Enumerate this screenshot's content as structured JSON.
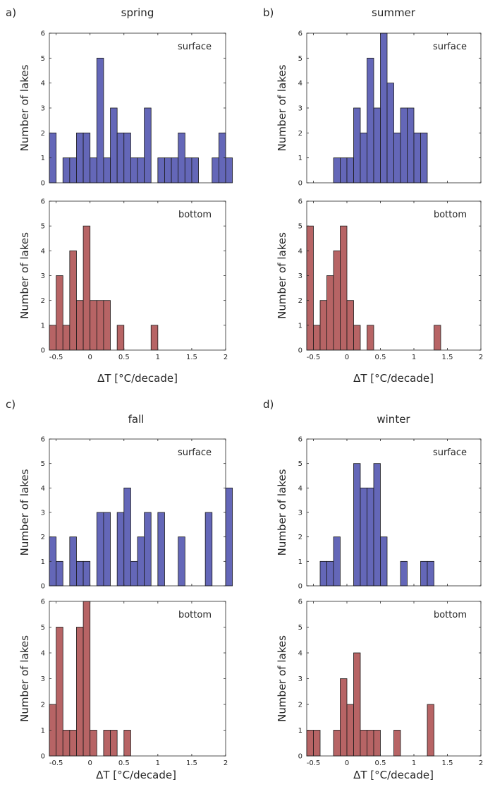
{
  "figure": {
    "x_axis_label": "ΔT [°C/decade]",
    "y_axis_label": "Number of lakes",
    "colors": {
      "surface": "#6467b8",
      "bottom": "#b76465",
      "edge": "#1a1a1a",
      "axis": "#262626"
    }
  },
  "chart_data": [
    {
      "panel": "a)",
      "season": "spring",
      "type": "bar",
      "plots": [
        {
          "label": "surface",
          "kind": "surface",
          "xlim": [
            -0.6,
            2
          ],
          "ylim": [
            0,
            6
          ],
          "xticks": [
            "-0.5",
            "0",
            "0.5",
            "1",
            "1.5",
            "2"
          ],
          "yticks": [
            "0",
            "1",
            "2",
            "3",
            "4",
            "5",
            "6"
          ],
          "bins": [
            [
              -0.6,
              2
            ],
            [
              -0.5,
              0
            ],
            [
              -0.4,
              1
            ],
            [
              -0.3,
              1
            ],
            [
              -0.2,
              2
            ],
            [
              -0.1,
              2
            ],
            [
              0.0,
              1
            ],
            [
              0.1,
              5
            ],
            [
              0.2,
              1
            ],
            [
              0.3,
              3
            ],
            [
              0.4,
              2
            ],
            [
              0.5,
              2
            ],
            [
              0.6,
              1
            ],
            [
              0.7,
              1
            ],
            [
              0.8,
              3
            ],
            [
              0.9,
              0
            ],
            [
              1.0,
              1
            ],
            [
              1.1,
              1
            ],
            [
              1.2,
              1
            ],
            [
              1.3,
              2
            ],
            [
              1.4,
              1
            ],
            [
              1.5,
              1
            ],
            [
              1.6,
              0
            ],
            [
              1.7,
              0
            ],
            [
              1.8,
              1
            ],
            [
              1.9,
              2
            ],
            [
              2.0,
              1
            ]
          ],
          "binwidth": 0.1
        },
        {
          "label": "bottom",
          "kind": "bottom",
          "xlim": [
            -0.6,
            2
          ],
          "ylim": [
            0,
            6
          ],
          "xticks": [
            "-0.5",
            "0",
            "0.5",
            "1",
            "1.5",
            "2"
          ],
          "yticks": [
            "0",
            "1",
            "2",
            "3",
            "4",
            "5",
            "6"
          ],
          "bins": [
            [
              -0.6,
              1
            ],
            [
              -0.5,
              3
            ],
            [
              -0.4,
              1
            ],
            [
              -0.3,
              4
            ],
            [
              -0.2,
              2
            ],
            [
              -0.1,
              5
            ],
            [
              0.0,
              2
            ],
            [
              0.1,
              2
            ],
            [
              0.2,
              2
            ],
            [
              0.3,
              0
            ],
            [
              0.4,
              1
            ],
            [
              0.9,
              1
            ]
          ],
          "binwidth": 0.1
        }
      ]
    },
    {
      "panel": "b)",
      "season": "summer",
      "type": "bar",
      "plots": [
        {
          "label": "surface",
          "kind": "surface",
          "xlim": [
            -0.6,
            2
          ],
          "ylim": [
            0,
            6
          ],
          "xticks": [
            "-0.5",
            "0",
            "0.5",
            "1",
            "1.5",
            "2"
          ],
          "yticks": [
            "0",
            "1",
            "2",
            "3",
            "4",
            "5",
            "6"
          ],
          "bins": [
            [
              -0.2,
              1
            ],
            [
              -0.1,
              1
            ],
            [
              0.0,
              1
            ],
            [
              0.1,
              3
            ],
            [
              0.2,
              2
            ],
            [
              0.3,
              5
            ],
            [
              0.4,
              3
            ],
            [
              0.5,
              6
            ],
            [
              0.6,
              4
            ],
            [
              0.7,
              2
            ],
            [
              0.8,
              3
            ],
            [
              0.9,
              3
            ],
            [
              1.0,
              2
            ],
            [
              1.1,
              2
            ]
          ],
          "binwidth": 0.1
        },
        {
          "label": "bottom",
          "kind": "bottom",
          "xlim": [
            -0.6,
            2
          ],
          "ylim": [
            0,
            6
          ],
          "xticks": [
            "-0.5",
            "0",
            "0.5",
            "1",
            "1.5",
            "2"
          ],
          "yticks": [
            "0",
            "1",
            "2",
            "3",
            "4",
            "5",
            "6"
          ],
          "bins": [
            [
              -0.6,
              5
            ],
            [
              -0.5,
              1
            ],
            [
              -0.4,
              2
            ],
            [
              -0.3,
              3
            ],
            [
              -0.2,
              4
            ],
            [
              -0.1,
              5
            ],
            [
              0.0,
              2
            ],
            [
              0.1,
              1
            ],
            [
              0.3,
              1
            ],
            [
              1.3,
              1
            ]
          ],
          "binwidth": 0.1
        }
      ]
    },
    {
      "panel": "c)",
      "season": "fall",
      "type": "bar",
      "plots": [
        {
          "label": "surface",
          "kind": "surface",
          "xlim": [
            -0.6,
            2
          ],
          "ylim": [
            0,
            6
          ],
          "xticks": [
            "-0.5",
            "0",
            "0.5",
            "1",
            "1.5",
            "2"
          ],
          "yticks": [
            "0",
            "1",
            "2",
            "3",
            "4",
            "5",
            "6"
          ],
          "bins": [
            [
              -0.6,
              2
            ],
            [
              -0.5,
              1
            ],
            [
              -0.3,
              2
            ],
            [
              -0.2,
              1
            ],
            [
              -0.1,
              1
            ],
            [
              0.1,
              3
            ],
            [
              0.2,
              3
            ],
            [
              0.4,
              3
            ],
            [
              0.5,
              4
            ],
            [
              0.6,
              1
            ],
            [
              0.7,
              2
            ],
            [
              0.8,
              3
            ],
            [
              1.0,
              3
            ],
            [
              1.3,
              2
            ],
            [
              1.7,
              3
            ],
            [
              2.0,
              4
            ]
          ],
          "binwidth": 0.1
        },
        {
          "label": "bottom",
          "kind": "bottom",
          "xlim": [
            -0.6,
            2
          ],
          "ylim": [
            0,
            6
          ],
          "xticks": [
            "-0.5",
            "0",
            "0.5",
            "1",
            "1.5",
            "2"
          ],
          "yticks": [
            "0",
            "1",
            "2",
            "3",
            "4",
            "5",
            "6"
          ],
          "bins": [
            [
              -0.6,
              2
            ],
            [
              -0.5,
              5
            ],
            [
              -0.4,
              1
            ],
            [
              -0.3,
              1
            ],
            [
              -0.2,
              5
            ],
            [
              -0.1,
              6
            ],
            [
              0.0,
              1
            ],
            [
              0.2,
              1
            ],
            [
              0.3,
              1
            ],
            [
              0.5,
              1
            ]
          ],
          "binwidth": 0.1
        }
      ]
    },
    {
      "panel": "d)",
      "season": "winter",
      "type": "bar",
      "plots": [
        {
          "label": "surface",
          "kind": "surface",
          "xlim": [
            -0.6,
            2
          ],
          "ylim": [
            0,
            6
          ],
          "xticks": [
            "-0.5",
            "0",
            "0.5",
            "1",
            "1.5",
            "2"
          ],
          "yticks": [
            "0",
            "1",
            "2",
            "3",
            "4",
            "5",
            "6"
          ],
          "bins": [
            [
              -0.4,
              1
            ],
            [
              -0.3,
              1
            ],
            [
              -0.2,
              2
            ],
            [
              0.1,
              5
            ],
            [
              0.2,
              4
            ],
            [
              0.3,
              4
            ],
            [
              0.4,
              5
            ],
            [
              0.5,
              2
            ],
            [
              0.8,
              1
            ],
            [
              1.1,
              1
            ],
            [
              1.2,
              1
            ]
          ],
          "binwidth": 0.1
        },
        {
          "label": "bottom",
          "kind": "bottom",
          "xlim": [
            -0.6,
            2
          ],
          "ylim": [
            0,
            6
          ],
          "xticks": [
            "-0.5",
            "0",
            "0.5",
            "1",
            "1.5",
            "2"
          ],
          "yticks": [
            "0",
            "1",
            "2",
            "3",
            "4",
            "5",
            "6"
          ],
          "bins": [
            [
              -0.6,
              1
            ],
            [
              -0.5,
              1
            ],
            [
              -0.2,
              1
            ],
            [
              -0.1,
              3
            ],
            [
              0.0,
              2
            ],
            [
              0.1,
              4
            ],
            [
              0.2,
              1
            ],
            [
              0.3,
              1
            ],
            [
              0.4,
              1
            ],
            [
              0.7,
              1
            ],
            [
              1.2,
              2
            ]
          ],
          "binwidth": 0.1
        }
      ]
    }
  ]
}
